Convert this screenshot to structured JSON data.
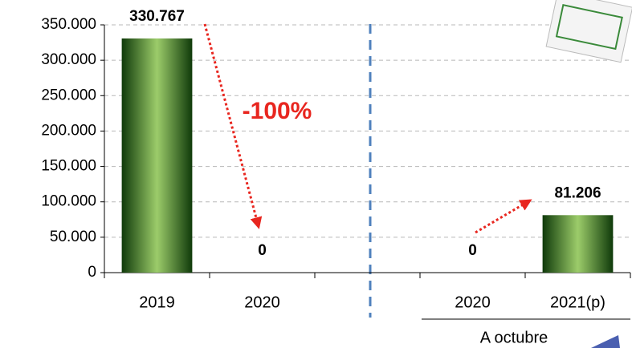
{
  "chart_data": {
    "type": "bar",
    "categories": [
      "2019",
      "2020",
      null,
      "2020",
      "2021(p)"
    ],
    "values": [
      330767,
      0,
      null,
      0,
      81206
    ],
    "value_labels": [
      "330.767",
      "0",
      null,
      "0",
      "81.206"
    ],
    "color": "#2e6b1f",
    "ylim": [
      0,
      350000
    ],
    "yticks": [
      0,
      {
        "value": 50000,
        "label": "50.000"
      },
      {
        "value": 100000,
        "label": "100.000"
      },
      {
        "value": 150000,
        "label": "150.000"
      },
      {
        "value": 200000,
        "label": "200.000"
      },
      {
        "value": 250000,
        "label": "250.000"
      },
      {
        "value": 300000,
        "label": "300.000"
      },
      {
        "value": 350000,
        "label": "350.000"
      }
    ],
    "grid": true,
    "annotations": [
      "-100%",
      "A octubre"
    ]
  }
}
